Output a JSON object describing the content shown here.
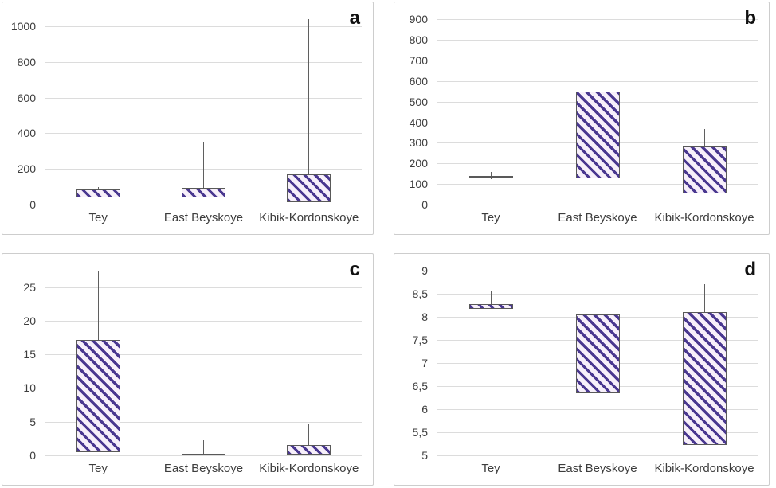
{
  "figure": {
    "background": "#ffffff",
    "title": "",
    "panel_count": 4
  },
  "style": {
    "hatch_stripe_color": "#4a3890",
    "hatch_background_color": "#f7f0fa",
    "box_border_color": "#595959",
    "whisker_color": "#5f5f5f",
    "gridline_color": "#dcdcdc",
    "panel_border_color": "#cdcdcd",
    "text_color": "#3d3d3d",
    "panel_letter_color": "#111111"
  },
  "chart_data": [
    {
      "type": "bar",
      "subtype": "floating-box-with-whiskers",
      "panel_label": "a",
      "title": "",
      "xlabel": "",
      "ylabel": "",
      "grid": true,
      "legend": false,
      "categories": [
        "Tey",
        "East Beyskoye",
        "Kibik-Kordonskoye"
      ],
      "ylim": [
        0,
        1080
      ],
      "yticks": [
        {
          "value": 0,
          "label": "0"
        },
        {
          "value": 200,
          "label": "200"
        },
        {
          "value": 400,
          "label": "400"
        },
        {
          "value": 600,
          "label": "600"
        },
        {
          "value": 800,
          "label": "800"
        },
        {
          "value": 1000,
          "label": "1000"
        }
      ],
      "series": [
        {
          "category": "Tey",
          "box_low": 40,
          "box_high": 85,
          "whisker_high": 100
        },
        {
          "category": "East Beyskoye",
          "box_low": 38,
          "box_high": 95,
          "whisker_high": 350
        },
        {
          "category": "Kibik-Kordonskoye",
          "box_low": 12,
          "box_high": 170,
          "whisker_high": 1040
        }
      ]
    },
    {
      "type": "bar",
      "subtype": "floating-box-with-whiskers",
      "panel_label": "b",
      "title": "",
      "xlabel": "",
      "ylabel": "",
      "grid": true,
      "legend": false,
      "categories": [
        "Tey",
        "East Beyskoye",
        "Kibik-Kordonskoye"
      ],
      "ylim": [
        0,
        935
      ],
      "yticks": [
        {
          "value": 0,
          "label": "0"
        },
        {
          "value": 100,
          "label": "100"
        },
        {
          "value": 200,
          "label": "200"
        },
        {
          "value": 300,
          "label": "300"
        },
        {
          "value": 400,
          "label": "400"
        },
        {
          "value": 500,
          "label": "500"
        },
        {
          "value": 600,
          "label": "600"
        },
        {
          "value": 700,
          "label": "700"
        },
        {
          "value": 800,
          "label": "800"
        },
        {
          "value": 900,
          "label": "900"
        }
      ],
      "series": [
        {
          "category": "Tey",
          "box_low": 133,
          "box_high": 141,
          "whisker_high": 158,
          "whisker_low": 122
        },
        {
          "category": "East Beyskoye",
          "box_low": 127,
          "box_high": 548,
          "whisker_high": 893
        },
        {
          "category": "Kibik-Kordonskoye",
          "box_low": 55,
          "box_high": 283,
          "whisker_high": 368
        }
      ]
    },
    {
      "type": "bar",
      "subtype": "floating-box-with-whiskers",
      "panel_label": "c",
      "title": "",
      "xlabel": "",
      "ylabel": "",
      "grid": true,
      "legend": false,
      "categories": [
        "Tey",
        "East Beyskoye",
        "Kibik-Kordonskoye"
      ],
      "ylim": [
        0,
        28.5
      ],
      "yticks": [
        {
          "value": 0,
          "label": "0"
        },
        {
          "value": 5,
          "label": "5"
        },
        {
          "value": 10,
          "label": "10"
        },
        {
          "value": 15,
          "label": "15"
        },
        {
          "value": 20,
          "label": "20"
        },
        {
          "value": 25,
          "label": "25"
        }
      ],
      "series": [
        {
          "category": "Tey",
          "box_low": 0.5,
          "box_high": 17.1,
          "whisker_high": 27.3
        },
        {
          "category": "East Beyskoye",
          "box_low": 0,
          "box_high": 0.25,
          "whisker_high": 2.2
        },
        {
          "category": "Kibik-Kordonskoye",
          "box_low": 0.1,
          "box_high": 1.6,
          "whisker_high": 4.7
        }
      ]
    },
    {
      "type": "bar",
      "subtype": "floating-box-with-whiskers",
      "panel_label": "d",
      "title": "",
      "xlabel": "",
      "ylabel": "",
      "grid": true,
      "legend": false,
      "categories": [
        "Tey",
        "East Beyskoye",
        "Kibik-Kordonskoye"
      ],
      "ylim": [
        5,
        9.15
      ],
      "yticks": [
        {
          "value": 5,
          "label": "5"
        },
        {
          "value": 5.5,
          "label": "5,5"
        },
        {
          "value": 6,
          "label": "6"
        },
        {
          "value": 6.5,
          "label": "6,5"
        },
        {
          "value": 7,
          "label": "7"
        },
        {
          "value": 7.5,
          "label": "7,5"
        },
        {
          "value": 8,
          "label": "8"
        },
        {
          "value": 8.5,
          "label": "8,5"
        },
        {
          "value": 9,
          "label": "9"
        }
      ],
      "series": [
        {
          "category": "Tey",
          "box_low": 8.17,
          "box_high": 8.28,
          "whisker_high": 8.55
        },
        {
          "category": "East Beyskoye",
          "box_low": 6.35,
          "box_high": 8.05,
          "whisker_high": 8.23
        },
        {
          "category": "Kibik-Kordonskoye",
          "box_low": 5.22,
          "box_high": 8.1,
          "whisker_high": 8.7
        }
      ]
    }
  ]
}
